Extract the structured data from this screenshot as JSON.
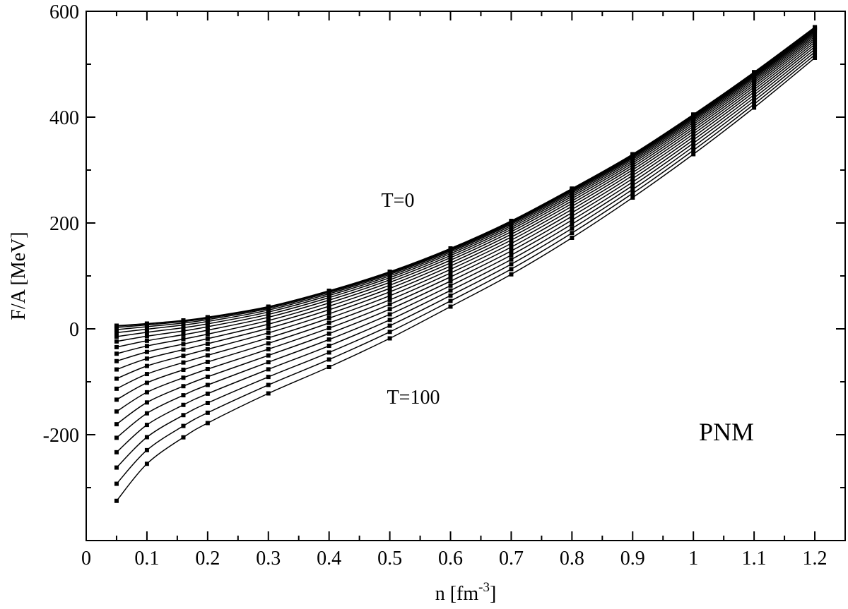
{
  "chart_data": {
    "type": "line",
    "xlabel": "n [fm",
    "xlabel_sup": "-3",
    "xlabel_end": "]",
    "ylabel": "F/A [MeV]",
    "xlim": [
      0,
      1.25
    ],
    "ylim": [
      -400,
      600
    ],
    "x_ticks": [
      "0",
      "0.1",
      "0.2",
      "0.3",
      "0.4",
      "0.5",
      "0.6",
      "0.7",
      "0.8",
      "0.9",
      "1",
      "1.1",
      "1.2"
    ],
    "y_ticks": [
      "-200",
      "0",
      "200",
      "400",
      "600"
    ],
    "x": [
      0.05,
      0.1,
      0.16,
      0.2,
      0.3,
      0.4,
      0.5,
      0.6,
      0.7,
      0.8,
      0.9,
      1.0,
      1.1,
      1.2
    ],
    "T_range": [
      0,
      100
    ],
    "curve_count": 21,
    "series_T0": [
      6,
      10,
      16,
      22,
      42,
      72,
      108,
      152,
      204,
      265,
      330,
      405,
      485,
      570
    ],
    "series_T100": [
      -325,
      -255,
      -205,
      -178,
      -122,
      -72,
      -18,
      42,
      103,
      172,
      248,
      330,
      418,
      512
    ],
    "annotations": {
      "t_low": "T=0",
      "t_high": "T=100",
      "system": "PNM"
    },
    "grid": false,
    "legend": "none"
  }
}
